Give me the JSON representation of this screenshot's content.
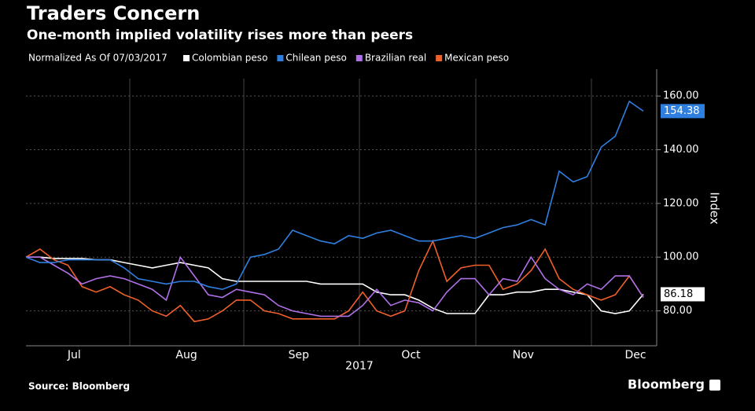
{
  "chart_data": {
    "type": "line",
    "title": "Traders Concern",
    "subtitle": "One-month implied volatility rises more than peers",
    "legend_title": "Normalized As Of 07/03/2017",
    "ylabel": "Index",
    "xlabel": "2017",
    "source": "Source: Bloomberg",
    "brand": "Bloomberg",
    "categories": [
      null,
      null,
      null,
      null,
      "Jul",
      null,
      null,
      null,
      null,
      null,
      null,
      null,
      "Aug",
      null,
      null,
      null,
      null,
      null,
      null,
      null,
      "Sep",
      null,
      null,
      null,
      null,
      null,
      null,
      null,
      "Oct",
      null,
      null,
      null,
      null,
      null,
      null,
      null,
      "Nov",
      null,
      null,
      null,
      null,
      null,
      null,
      null,
      "Dec"
    ],
    "ylim": [
      67,
      170
    ],
    "yticks": [
      {
        "value": 80,
        "label": "80.00"
      },
      {
        "value": 100,
        "label": "100.00"
      },
      {
        "value": 120,
        "label": "120.00"
      },
      {
        "value": 140,
        "label": "140.00"
      },
      {
        "value": 160,
        "label": "160.00"
      }
    ],
    "grid": true,
    "series": [
      {
        "name": "Colombian peso",
        "color": "#ffffff",
        "end_label": "86.18",
        "values": [
          100,
          100,
          99.5,
          99.5,
          99.5,
          99,
          99,
          98,
          97,
          96,
          97,
          98,
          97,
          96,
          92,
          91,
          91,
          91,
          91,
          91,
          91,
          90,
          90,
          90,
          90,
          87,
          86,
          86,
          84,
          81,
          79,
          79,
          79,
          86,
          86,
          87,
          87,
          88,
          88,
          87,
          86,
          80,
          79,
          80,
          86.18
        ]
      },
      {
        "name": "Chilean peso",
        "color": "#2f7fe0",
        "end_label": "154.38",
        "values": [
          100,
          98,
          98,
          99,
          99,
          99,
          99,
          96,
          92,
          91,
          90,
          91,
          91,
          89,
          88,
          90,
          100,
          101,
          103,
          110,
          108,
          106,
          105,
          108,
          107,
          109,
          110,
          108,
          106,
          106,
          107,
          108,
          107,
          109,
          111,
          112,
          114,
          112,
          132,
          128,
          130,
          141,
          145,
          158,
          154.38
        ]
      },
      {
        "name": "Brazilian real",
        "color": "#b070e8",
        "values": [
          100,
          100,
          97,
          94,
          90,
          92,
          93,
          92,
          90,
          88,
          84,
          100,
          93,
          86,
          85,
          88,
          87,
          86,
          82,
          80,
          79,
          78,
          78,
          78,
          82,
          88,
          82,
          84,
          83,
          80,
          87,
          92,
          92,
          86,
          92,
          91,
          100,
          92,
          88,
          86,
          90,
          88,
          93,
          93,
          85
        ]
      },
      {
        "name": "Mexican peso",
        "color": "#f0602a",
        "values": [
          100,
          103,
          99,
          97,
          89,
          87,
          89,
          86,
          84,
          80,
          78,
          82,
          76,
          77,
          80,
          84,
          84,
          80,
          79,
          77,
          77,
          77,
          77,
          80,
          87,
          80,
          78,
          80,
          95,
          106,
          91,
          96,
          97,
          97,
          88,
          90,
          95,
          103,
          92,
          88,
          86,
          84,
          86,
          93,
          85
        ]
      }
    ]
  }
}
